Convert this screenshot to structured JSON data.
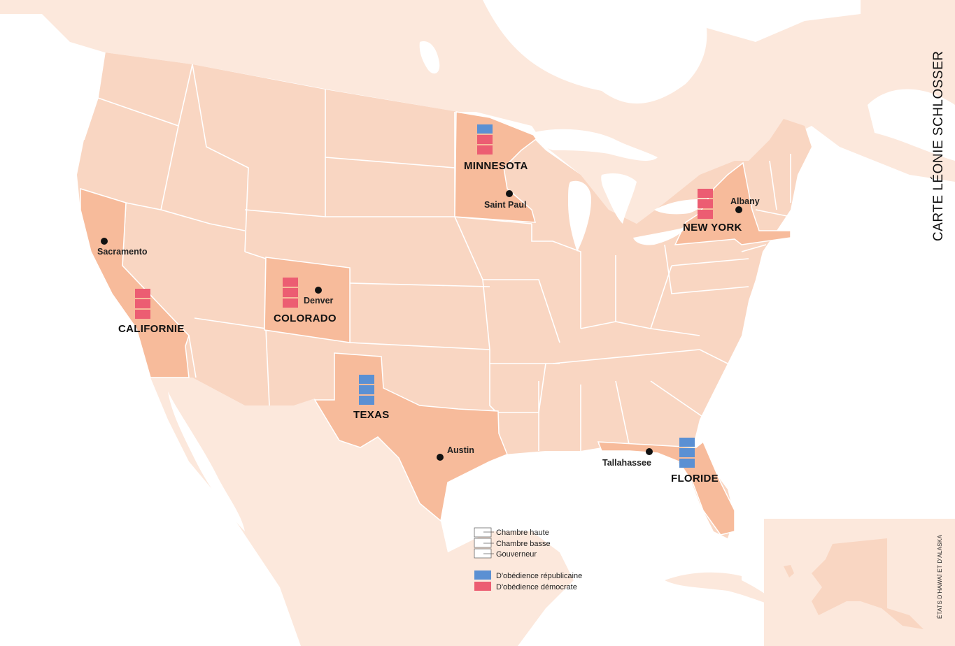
{
  "credit": "CARTE LÉONIE SCHLOSSER",
  "inset_caption": "ÉTATS D'HAWAÏ ET D'ALASKA",
  "colors": {
    "land": "#fce8dc",
    "us_states": "#f9d6c2",
    "highlight_states": "#f7bb9b",
    "borders": "#ffffff",
    "republican": "#5b90d3",
    "democrat": "#ec5d72",
    "water": "#ffffff"
  },
  "states": [
    {
      "name": "MINNESOTA",
      "capital": "Saint Paul",
      "upper_house": "republican",
      "lower_house": "democrat",
      "governor": "democrat"
    },
    {
      "name": "NEW YORK",
      "capital": "Albany",
      "upper_house": "democrat",
      "lower_house": "democrat",
      "governor": "democrat"
    },
    {
      "name": "CALIFORNIE",
      "capital": "Sacramento",
      "upper_house": "democrat",
      "lower_house": "democrat",
      "governor": "democrat"
    },
    {
      "name": "COLORADO",
      "capital": "Denver",
      "upper_house": "democrat",
      "lower_house": "democrat",
      "governor": "democrat"
    },
    {
      "name": "TEXAS",
      "capital": "Austin",
      "upper_house": "republican",
      "lower_house": "republican",
      "governor": "republican"
    },
    {
      "name": "FLORIDE",
      "capital": "Tallahassee",
      "upper_house": "republican",
      "lower_house": "republican",
      "governor": "republican"
    }
  ],
  "legend": {
    "structure": [
      "Chambre haute",
      "Chambre basse",
      "Gouverneur"
    ],
    "parties": [
      {
        "label": "D'obédience républicaine",
        "party": "republican"
      },
      {
        "label": "D'obédience démocrate",
        "party": "democrat"
      }
    ]
  }
}
